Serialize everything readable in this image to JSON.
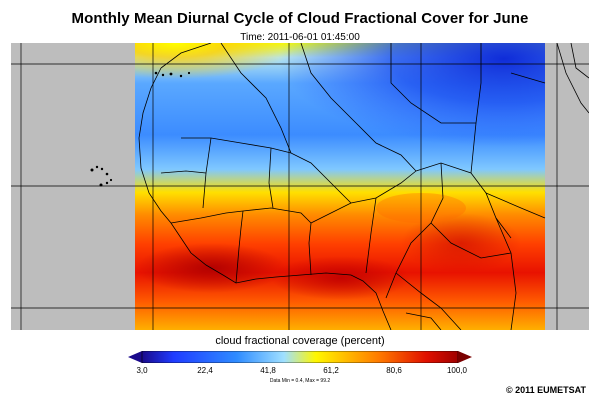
{
  "title": "Monthly Mean Diurnal Cycle of Cloud Fractional Cover for June",
  "time": "Time: 2011-06-01 01:45:00",
  "colorbar": {
    "label": "cloud fractional coverage (percent)",
    "ticks": [
      "3,0",
      "22,4",
      "41,8",
      "61,2",
      "80,6",
      "100,0"
    ],
    "stats": "Data Min = 0.4,  Max = 99.2",
    "colors": [
      "#1a0a8c",
      "#2a5fff",
      "#8fd0ff",
      "#fff700",
      "#ff5a00",
      "#a00000"
    ],
    "min_arrow_color": "#1a0a8c",
    "max_arrow_color": "#7a0000"
  },
  "map": {
    "region": "West Africa",
    "nodata_color": "#bdbdbd",
    "grid_color": "#000000",
    "border_color": "#000000"
  },
  "copyright": "© 2011 EUMETSAT"
}
